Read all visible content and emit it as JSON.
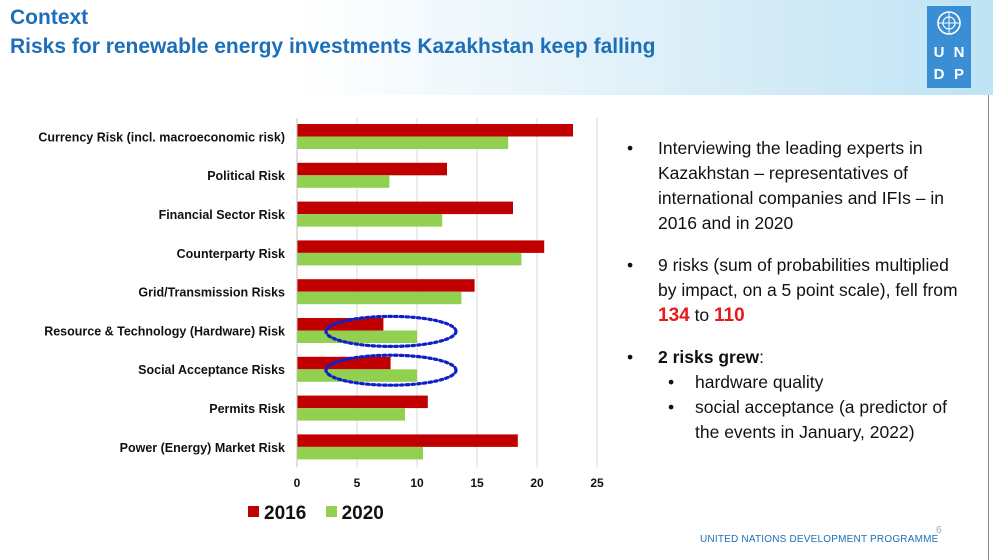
{
  "header": {
    "context": "Context",
    "title": "Risks for renewable energy investments Kazakhstan keep falling"
  },
  "logo": {
    "letters": [
      "U",
      "N",
      "D",
      "P"
    ]
  },
  "colors": {
    "series_2016": "#c00000",
    "series_2020": "#92d050",
    "title": "#1c6fb8",
    "highlight": "#e51a1a"
  },
  "chart_data": {
    "type": "bar",
    "orientation": "horizontal",
    "categories": [
      "Currency Risk (incl. macroeconomic risk)",
      "Political Risk",
      "Financial Sector Risk",
      "Counterparty Risk",
      "Grid/Transmission Risks",
      "Resource & Technology (Hardware) Risk",
      "Social Acceptance Risks",
      "Permits Risk",
      "Power (Energy) Market Risk"
    ],
    "series": [
      {
        "name": "2016",
        "values": [
          23,
          12.5,
          18,
          20.6,
          14.8,
          7.2,
          7.8,
          10.9,
          18.4
        ]
      },
      {
        "name": "2020",
        "values": [
          17.6,
          7.7,
          12.1,
          18.7,
          13.7,
          10,
          10,
          9,
          10.5
        ]
      }
    ],
    "xlim": [
      0,
      25
    ],
    "xticks": [
      "0",
      "5",
      "10",
      "15",
      "20",
      "25"
    ],
    "grid": true,
    "legend": "bottom",
    "annotations": [
      "dotted ellipse around Resource & Technology (Hardware) Risk",
      "dotted ellipse around Social Acceptance Risks"
    ]
  },
  "bullets": {
    "b1": "Interviewing the leading experts in Kazakhstan – representatives of international companies and IFIs – in 2016 and in 2020",
    "b2_pre": "9 risks (sum of probabilities multiplied by impact, on a 5 point scale), fell from ",
    "b2_from": "134",
    "b2_mid": " to ",
    "b2_to": "110",
    "b3_bold": "2 risks grew",
    "b3_rest": ":",
    "sub1": "hardware quality",
    "sub2": "social acceptance (a predictor of the events in January, 2022)",
    "bullet_char": "•"
  },
  "footer": {
    "org": "UNITED NATIONS DEVELOPMENT PROGRAMME",
    "page": "6"
  }
}
